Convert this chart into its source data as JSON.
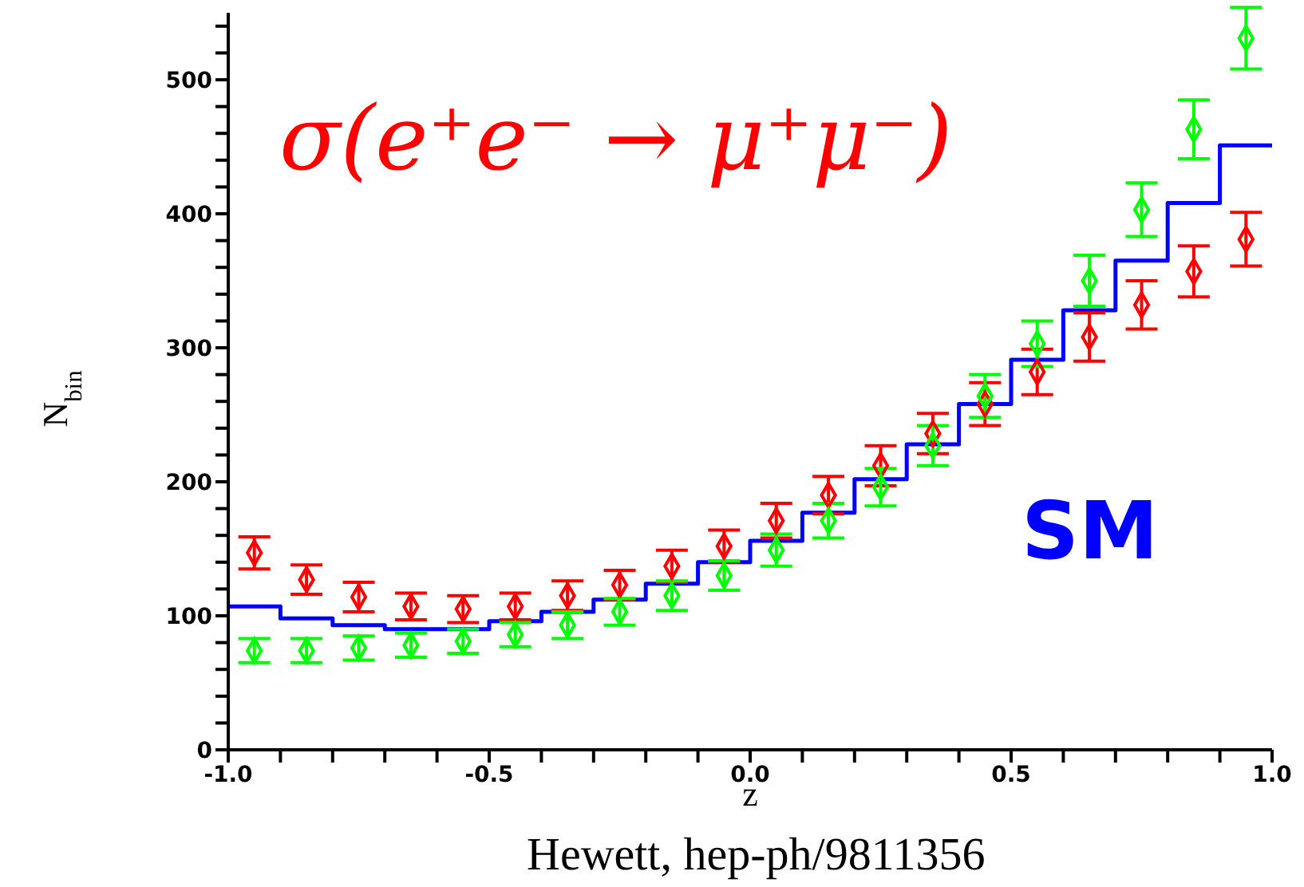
{
  "chart_data": {
    "type": "histogram",
    "xlabel": "z",
    "ylabel": "N$_{bin}$",
    "annotations": [
      "σ(e⁺e⁻ → μ⁺μ⁻)",
      "SM",
      "Hewett, hep-ph/9811356"
    ],
    "series": [
      {
        "color": "#0000ff",
        "bins": [
          -1,
          -0.9,
          -0.8,
          -0.7,
          -0.6,
          -0.5,
          -0.4,
          -0.3,
          -0.2,
          -0.1,
          0,
          0.1,
          0.2,
          0.3,
          0.4,
          0.5,
          0.6,
          0.7,
          0.8,
          0.9,
          1
        ],
        "values": [
          107,
          98,
          93,
          90,
          90,
          96,
          103,
          112,
          124,
          140,
          156,
          177,
          202,
          228,
          258,
          291,
          328,
          365,
          408,
          451
        ]
      },
      {
        "type": "scatter",
        "color": "#ff0000",
        "x": [
          -0.95,
          -0.85,
          -0.75,
          -0.65,
          -0.55,
          -0.45,
          -0.35,
          -0.25,
          -0.15,
          -0.05,
          0.05,
          0.15,
          0.25,
          0.35,
          0.45,
          0.55,
          0.65,
          0.75,
          0.85,
          0.95
        ],
        "values": [
          147,
          127,
          114,
          107,
          105,
          107,
          115,
          123,
          137,
          152,
          171,
          190,
          212,
          236,
          258,
          282,
          308,
          332,
          357,
          381
        ],
        "errors": [
          12,
          11,
          11,
          10,
          10,
          10,
          11,
          11,
          12,
          12,
          13,
          14,
          15,
          15,
          16,
          17,
          18,
          18,
          19,
          20
        ]
      },
      {
        "type": "scatter",
        "color": "#00ff00",
        "x": [
          -0.95,
          -0.85,
          -0.75,
          -0.65,
          -0.55,
          -0.45,
          -0.35,
          -0.25,
          -0.15,
          -0.05,
          0.05,
          0.15,
          0.25,
          0.35,
          0.45,
          0.55,
          0.65,
          0.75,
          0.85,
          0.95
        ],
        "values": [
          74,
          74,
          76,
          78,
          81,
          86,
          93,
          103,
          115,
          130,
          149,
          171,
          196,
          227,
          264,
          303,
          350,
          403,
          463,
          531
        ],
        "errors": [
          9,
          9,
          9,
          9,
          9,
          9,
          10,
          10,
          11,
          11,
          12,
          13,
          14,
          15,
          16,
          17,
          19,
          20,
          22,
          23
        ]
      }
    ],
    "marker": "diamond",
    "xlim": [
      -1,
      1
    ],
    "xticks": [
      {
        "value": -1,
        "label": "-1.0"
      },
      {
        "value": -0.9,
        "label": null
      },
      {
        "value": -0.8,
        "label": null
      },
      {
        "value": -0.7,
        "label": null
      },
      {
        "value": -0.6,
        "label": null
      },
      {
        "value": -0.5,
        "label": "-0.5"
      },
      {
        "value": -0.4,
        "label": null
      },
      {
        "value": -0.3,
        "label": null
      },
      {
        "value": -0.2,
        "label": null
      },
      {
        "value": -0.1,
        "label": null
      },
      {
        "value": 0,
        "label": "0.0"
      },
      {
        "value": 0.1,
        "label": null
      },
      {
        "value": 0.2,
        "label": null
      },
      {
        "value": 0.3,
        "label": null
      },
      {
        "value": 0.4,
        "label": null
      },
      {
        "value": 0.5,
        "label": "0.5"
      },
      {
        "value": 0.6,
        "label": null
      },
      {
        "value": 0.7,
        "label": null
      },
      {
        "value": 0.8,
        "label": null
      },
      {
        "value": 0.9,
        "label": null
      },
      {
        "value": 1,
        "label": "1.0"
      }
    ],
    "ylim": [
      0,
      550
    ],
    "yticks": [
      0,
      {
        "value": 20,
        "label": null
      },
      {
        "value": 40,
        "label": null
      },
      {
        "value": 60,
        "label": null
      },
      {
        "value": 80,
        "label": null
      },
      100,
      {
        "value": 120,
        "label": null
      },
      {
        "value": 140,
        "label": null
      },
      {
        "value": 160,
        "label": null
      },
      {
        "value": 180,
        "label": null
      },
      200,
      {
        "value": 220,
        "label": null
      },
      {
        "value": 240,
        "label": null
      },
      {
        "value": 260,
        "label": null
      },
      {
        "value": 280,
        "label": null
      },
      300,
      {
        "value": 320,
        "label": null
      },
      {
        "value": 340,
        "label": null
      },
      {
        "value": 360,
        "label": null
      },
      {
        "value": 380,
        "label": null
      },
      400,
      {
        "value": 420,
        "label": null
      },
      {
        "value": 440,
        "label": null
      },
      {
        "value": 460,
        "label": null
      },
      {
        "value": 480,
        "label": null
      },
      500,
      {
        "value": 520,
        "label": null
      },
      {
        "value": 540,
        "label": null
      }
    ],
    "grid": false
  }
}
